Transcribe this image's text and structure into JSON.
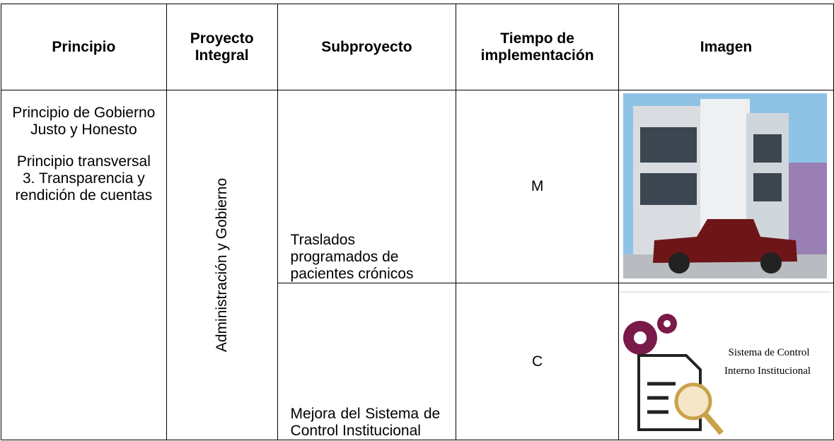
{
  "table": {
    "header": [
      "Principio",
      "Proyecto Integral",
      "Subproyecto",
      "Tiempo de implementación",
      "Imagen"
    ],
    "principio": [
      "Principio de Gobierno Justo y Honesto",
      "Principio transversal 3. Transparencia y rendición de cuentas"
    ],
    "proyecto": "Administración y Gobierno",
    "rows": [
      {
        "subproyecto": "Traslados programados de pacientes crónicos",
        "tiempo": "M"
      },
      {
        "subproyecto": "Mejora del Sistema de Control Institucional",
        "tiempo": "C",
        "image_text": [
          "Sistema de Control",
          "Interno Institucional"
        ]
      }
    ]
  }
}
